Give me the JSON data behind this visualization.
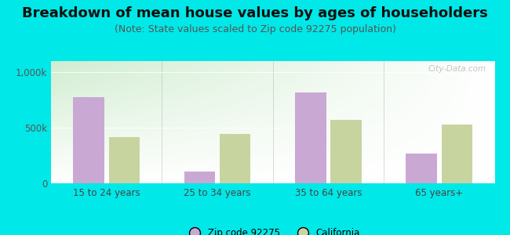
{
  "title": "Breakdown of mean house values by ages of householders",
  "subtitle": "(Note: State values scaled to Zip code 92275 population)",
  "categories": [
    "15 to 24 years",
    "25 to 34 years",
    "35 to 64 years",
    "65 years+"
  ],
  "zip_values": [
    775000,
    105000,
    820000,
    270000
  ],
  "ca_values": [
    415000,
    445000,
    570000,
    530000
  ],
  "zip_color": "#c9a8d4",
  "ca_color": "#c8d4a0",
  "background_outer": "#00e8e8",
  "ylim": [
    0,
    1100000
  ],
  "yticks": [
    0,
    500000,
    1000000
  ],
  "ytick_labels": [
    "0",
    "500k",
    "1,000k"
  ],
  "legend_zip_label": "Zip code 92275",
  "legend_ca_label": "California",
  "bar_width": 0.28,
  "title_fontsize": 13,
  "subtitle_fontsize": 9,
  "tick_fontsize": 8.5,
  "watermark_text": "City-Data.com"
}
